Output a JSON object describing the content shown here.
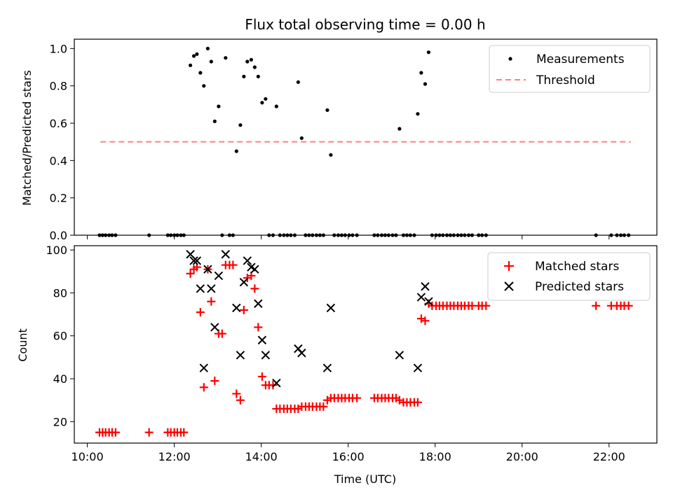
{
  "chart_data": [
    {
      "type": "scatter",
      "title": "Flux total observing time = 0.00 h",
      "xlabel": "",
      "ylabel": "Matched/Predicted stars",
      "xlim": [
        9.7,
        23.1
      ],
      "ylim": [
        0,
        1.05
      ],
      "yticks": [
        0.0,
        0.2,
        0.4,
        0.6,
        0.8,
        1.0
      ],
      "ytick_labels": [
        "0.0",
        "0.2",
        "0.4",
        "0.6",
        "0.8",
        "1.0"
      ],
      "legend_position": "top-right",
      "series": [
        {
          "name": "Measurements",
          "kind": "points",
          "color": "#000000",
          "x": [
            10.28,
            10.35,
            10.42,
            10.5,
            10.57,
            10.65,
            11.42,
            11.85,
            11.92,
            12.0,
            12.07,
            12.15,
            12.22,
            12.37,
            12.45,
            12.52,
            12.6,
            12.68,
            12.77,
            12.85,
            12.93,
            13.02,
            13.1,
            13.18,
            13.27,
            13.35,
            13.43,
            13.52,
            13.6,
            13.68,
            13.77,
            13.85,
            13.93,
            14.02,
            14.1,
            14.18,
            14.27,
            14.35,
            14.43,
            14.52,
            14.6,
            14.68,
            14.77,
            14.85,
            14.93,
            15.02,
            15.1,
            15.18,
            15.27,
            15.35,
            15.43,
            15.52,
            15.6,
            15.68,
            15.77,
            15.85,
            15.93,
            16.02,
            16.1,
            16.2,
            16.6,
            16.68,
            16.77,
            16.85,
            16.93,
            17.02,
            17.1,
            17.18,
            17.27,
            17.35,
            17.43,
            17.52,
            17.6,
            17.68,
            17.77,
            17.85,
            17.93,
            18.02,
            18.1,
            18.18,
            18.27,
            18.35,
            18.43,
            18.52,
            18.6,
            18.68,
            18.77,
            18.85,
            19.0,
            19.08,
            19.17,
            21.7,
            22.05,
            22.18,
            22.27,
            22.35,
            22.45
          ],
          "y": [
            0,
            0,
            0,
            0,
            0,
            0,
            0,
            0,
            0,
            0,
            0,
            0,
            0,
            0.91,
            0.96,
            0.97,
            0.87,
            0.8,
            1.0,
            0.93,
            0.61,
            0.69,
            0,
            0.95,
            0,
            0,
            0.45,
            0.59,
            0.85,
            0.93,
            0.94,
            0.9,
            0.85,
            0.71,
            0.73,
            0,
            0,
            0.69,
            0,
            0,
            0,
            0,
            0,
            0.82,
            0.52,
            0,
            0,
            0,
            0,
            0,
            0,
            0.67,
            0.43,
            0,
            0,
            0,
            0,
            0,
            0,
            0,
            0,
            0,
            0,
            0,
            0,
            0,
            0,
            0.57,
            0,
            0,
            0,
            0,
            0.65,
            0.87,
            0.81,
            0.98,
            0,
            0,
            0,
            0,
            0,
            0,
            0,
            0,
            0,
            0,
            0,
            0,
            0,
            0,
            0,
            0,
            0,
            0,
            0,
            0,
            0
          ]
        },
        {
          "name": "Threshold",
          "kind": "dashed-line",
          "color": "#ff8080",
          "x": [
            10.3,
            22.5
          ],
          "y": [
            0.5,
            0.5
          ]
        }
      ]
    },
    {
      "type": "scatter",
      "title": "",
      "xlabel": "Time (UTC)",
      "ylabel": "Count",
      "xlim": [
        9.7,
        23.1
      ],
      "ylim": [
        10,
        102
      ],
      "xticks": [
        10,
        12,
        14,
        16,
        18,
        20,
        22
      ],
      "xtick_labels": [
        "10:00",
        "12:00",
        "14:00",
        "16:00",
        "18:00",
        "20:00",
        "22:00"
      ],
      "yticks": [
        20,
        40,
        60,
        80,
        100
      ],
      "ytick_labels": [
        "20",
        "40",
        "60",
        "80",
        "100"
      ],
      "legend_position": "top-right",
      "series": [
        {
          "name": "Matched stars",
          "kind": "plus",
          "color": "#ff0000",
          "x": [
            10.28,
            10.35,
            10.42,
            10.5,
            10.57,
            10.65,
            11.42,
            11.85,
            11.92,
            12.0,
            12.07,
            12.15,
            12.22,
            12.37,
            12.45,
            12.52,
            12.6,
            12.68,
            12.77,
            12.85,
            12.93,
            13.02,
            13.1,
            13.18,
            13.27,
            13.35,
            13.43,
            13.52,
            13.6,
            13.68,
            13.77,
            13.85,
            13.93,
            14.02,
            14.1,
            14.18,
            14.27,
            14.35,
            14.43,
            14.52,
            14.6,
            14.68,
            14.77,
            14.85,
            14.93,
            15.02,
            15.1,
            15.18,
            15.27,
            15.35,
            15.43,
            15.52,
            15.6,
            15.68,
            15.77,
            15.85,
            15.93,
            16.02,
            16.1,
            16.2,
            16.6,
            16.68,
            16.77,
            16.85,
            16.93,
            17.02,
            17.1,
            17.18,
            17.27,
            17.35,
            17.43,
            17.52,
            17.6,
            17.68,
            17.77,
            17.85,
            17.93,
            18.02,
            18.1,
            18.18,
            18.27,
            18.35,
            18.43,
            18.52,
            18.6,
            18.68,
            18.77,
            18.85,
            19.0,
            19.08,
            19.17,
            21.7,
            22.05,
            22.18,
            22.27,
            22.35,
            22.45
          ],
          "y": [
            15,
            15,
            15,
            15,
            15,
            15,
            15,
            15,
            15,
            15,
            15,
            15,
            15,
            89,
            91,
            92,
            71,
            36,
            91,
            76,
            39,
            61,
            61,
            93,
            93,
            93,
            33,
            30,
            72,
            87,
            88,
            82,
            64,
            41,
            37,
            37,
            37,
            26,
            26,
            26,
            26,
            26,
            26,
            26,
            27,
            27,
            27,
            27,
            27,
            27,
            27,
            30,
            31,
            31,
            31,
            31,
            31,
            31,
            31,
            31,
            31,
            31,
            31,
            31,
            31,
            31,
            31,
            30,
            29,
            29,
            29,
            29,
            29,
            68,
            67,
            75,
            74,
            74,
            74,
            74,
            74,
            74,
            74,
            74,
            74,
            74,
            74,
            74,
            74,
            74,
            74,
            74,
            74,
            74,
            74,
            74,
            74
          ]
        },
        {
          "name": "Predicted stars",
          "kind": "x",
          "color": "#000000",
          "x": [
            12.37,
            12.45,
            12.52,
            12.6,
            12.68,
            12.77,
            12.85,
            12.93,
            13.02,
            13.18,
            13.43,
            13.52,
            13.6,
            13.68,
            13.77,
            13.85,
            13.93,
            14.02,
            14.1,
            14.35,
            14.85,
            14.93,
            15.52,
            15.6,
            17.18,
            17.6,
            17.68,
            17.77,
            17.85
          ],
          "y": [
            98,
            95,
            95,
            82,
            45,
            91,
            82,
            64,
            88,
            98,
            73,
            51,
            85,
            95,
            92,
            91,
            75,
            58,
            51,
            38,
            54,
            52,
            45,
            73,
            51,
            45,
            78,
            83,
            76
          ]
        }
      ]
    }
  ]
}
